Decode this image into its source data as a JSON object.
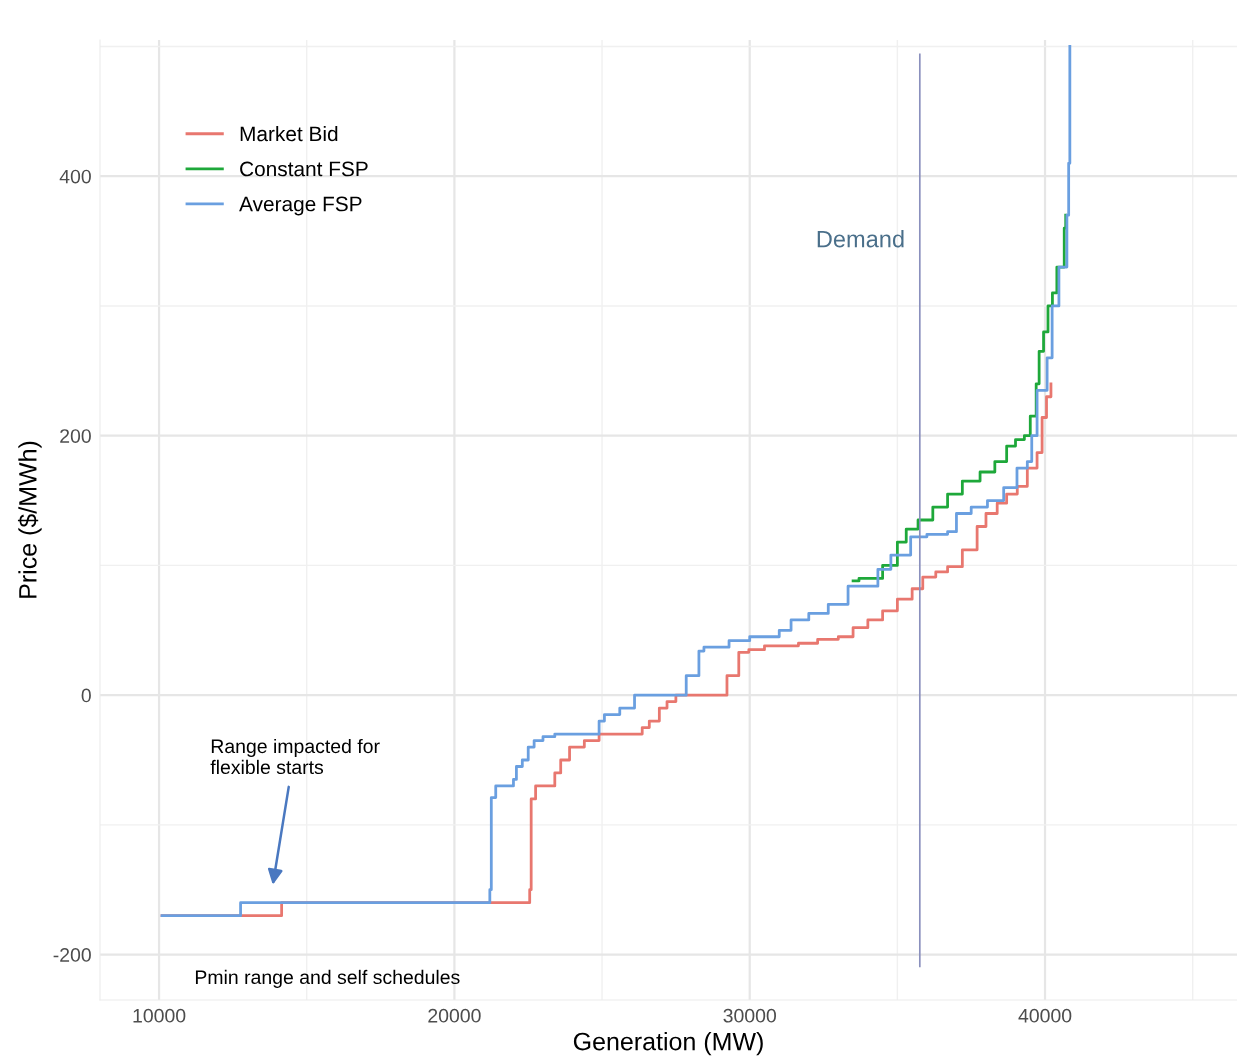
{
  "chart_data": {
    "type": "step",
    "xlabel": "Generation (MW)",
    "ylabel": "Price ($/MWh)",
    "xlim": [
      8000,
      46500
    ],
    "ylim": [
      -235,
      505
    ],
    "xticks": [
      10000,
      20000,
      30000,
      40000
    ],
    "yticks": [
      -200,
      0,
      200,
      400
    ],
    "grid": true,
    "legend": "top left",
    "line_style": "solid",
    "marker": "none",
    "series": [
      {
        "name": "Market Bid",
        "color": "#e8776f",
        "x": [
          10100,
          14150,
          22550,
          22600,
          22750,
          23400,
          23600,
          23900,
          24400,
          24900,
          26360,
          26600,
          26940,
          27200,
          27500,
          29230,
          29630,
          29970,
          30500,
          31650,
          32300,
          33000,
          33500,
          34000,
          34500,
          35000,
          35500,
          35860,
          36300,
          36700,
          37200,
          37700,
          38000,
          38380,
          38700,
          39060,
          39400,
          39730,
          39900,
          40050,
          40200
        ],
        "values": [
          -170,
          -160,
          -150,
          -80,
          -70,
          -60,
          -50,
          -40,
          -35,
          -30,
          -25,
          -20,
          -10,
          -5,
          0,
          15,
          33,
          35,
          38,
          40,
          43,
          45,
          52,
          58,
          65,
          74,
          82,
          91,
          95,
          99,
          112,
          130,
          140,
          148,
          155,
          161,
          175,
          187,
          214,
          230,
          240
        ]
      },
      {
        "name": "Constant FSP",
        "color": "#1ea83a",
        "x": [
          33500,
          33700,
          34500,
          35000,
          35300,
          35700,
          36200,
          36700,
          37200,
          37800,
          38300,
          38700,
          39000,
          39300,
          39500,
          39700,
          39800,
          39950,
          40100,
          40250,
          40400,
          40650,
          40700
        ],
        "values": [
          88,
          90,
          100,
          118,
          128,
          135,
          145,
          155,
          165,
          172,
          180,
          192,
          197,
          200,
          215,
          240,
          265,
          280,
          300,
          310,
          330,
          360,
          370
        ]
      },
      {
        "name": "Average FSP",
        "color": "#6a9fe0",
        "x": [
          10100,
          12760,
          21200,
          21250,
          21400,
          22000,
          22100,
          22300,
          22500,
          22700,
          23000,
          23400,
          24900,
          25080,
          25600,
          26100,
          27850,
          28280,
          28450,
          29300,
          30000,
          31000,
          31400,
          32000,
          32660,
          33330,
          34340,
          34780,
          35450,
          36000,
          36700,
          37000,
          37500,
          38050,
          38600,
          39050,
          39400,
          39550,
          39730,
          40070,
          40240,
          40470,
          40740,
          40800,
          40840
        ],
        "values": [
          -170,
          -160,
          -150,
          -79,
          -70,
          -65,
          -55,
          -50,
          -40,
          -35,
          -32,
          -30,
          -20,
          -15,
          -10,
          0,
          15,
          34,
          37,
          42,
          45,
          50,
          58,
          63,
          70,
          84,
          97,
          108,
          122,
          124,
          126,
          140,
          145,
          150,
          160,
          175,
          180,
          200,
          235,
          260,
          300,
          330,
          370,
          410,
          500
        ]
      }
    ],
    "ref_lines": [
      {
        "axis": "x",
        "value": 35760,
        "label": "Demand",
        "color": "#8a90bd"
      }
    ],
    "annotations": [
      "Range impacted for\nflexible starts",
      "Pmin range and self schedules"
    ]
  }
}
